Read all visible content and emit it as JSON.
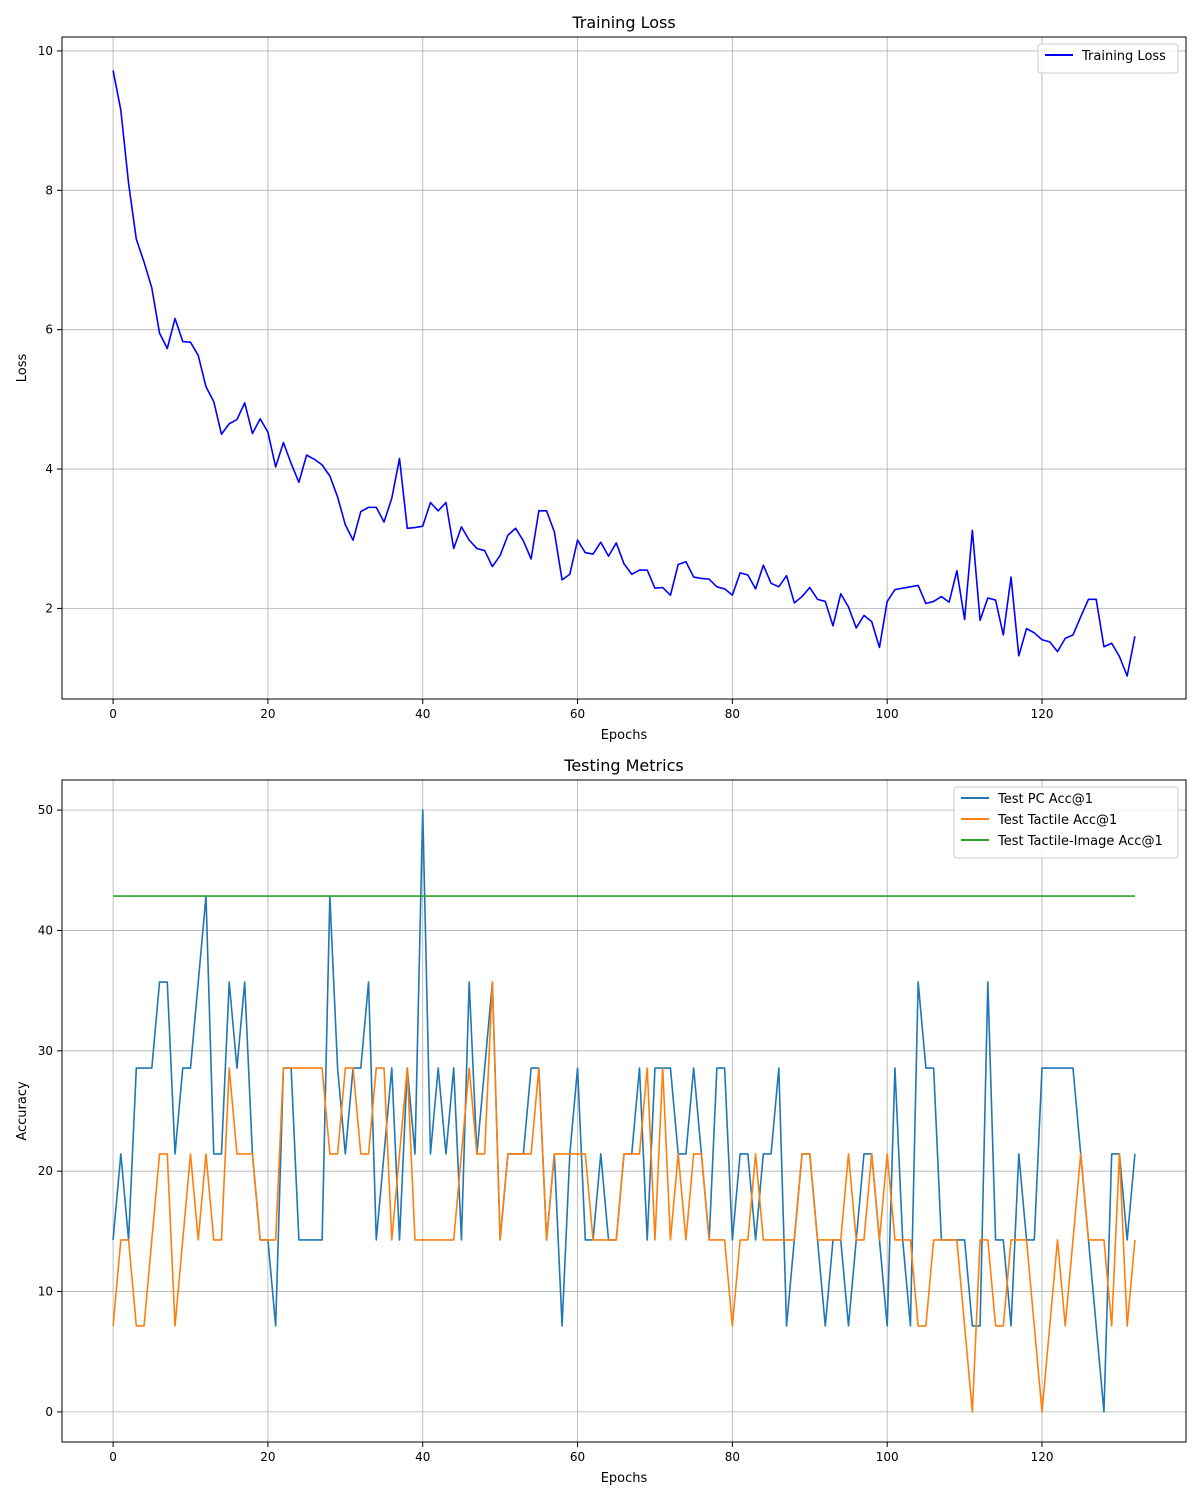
{
  "chart_data": [
    {
      "type": "line",
      "title": "Training Loss",
      "xlabel": "Epochs",
      "ylabel": "Loss",
      "xlim": [
        -6.6,
        138.6
      ],
      "ylim": [
        0.7,
        10.2
      ],
      "xticks": [
        0,
        20,
        40,
        60,
        80,
        100,
        120
      ],
      "yticks": [
        2,
        4,
        6,
        8,
        10
      ],
      "grid": true,
      "legend_position": "upper-right",
      "series": [
        {
          "name": "Training Loss",
          "color": "#0000ff",
          "x_start": 0,
          "values": [
            9.72,
            9.15,
            8.1,
            7.3,
            6.97,
            6.6,
            5.95,
            5.73,
            6.16,
            5.83,
            5.82,
            5.63,
            5.18,
            4.97,
            4.5,
            4.65,
            4.71,
            4.95,
            4.51,
            4.72,
            4.53,
            4.03,
            4.38,
            4.08,
            3.81,
            4.2,
            4.14,
            4.06,
            3.9,
            3.6,
            3.2,
            2.98,
            3.39,
            3.45,
            3.45,
            3.24,
            3.58,
            4.15,
            3.15,
            3.16,
            3.18,
            3.52,
            3.4,
            3.52,
            2.86,
            3.17,
            2.98,
            2.86,
            2.83,
            2.6,
            2.76,
            3.05,
            3.15,
            2.97,
            2.71,
            3.4,
            3.4,
            3.1,
            2.41,
            2.49,
            2.98,
            2.8,
            2.78,
            2.95,
            2.75,
            2.94,
            2.64,
            2.49,
            2.55,
            2.55,
            2.29,
            2.3,
            2.19,
            2.63,
            2.67,
            2.45,
            2.43,
            2.42,
            2.31,
            2.28,
            2.19,
            2.51,
            2.48,
            2.28,
            2.62,
            2.36,
            2.31,
            2.47,
            2.08,
            2.17,
            2.3,
            2.13,
            2.1,
            1.75,
            2.21,
            2.02,
            1.72,
            1.9,
            1.81,
            1.44,
            2.1,
            2.27,
            2.29,
            2.31,
            2.33,
            2.07,
            2.1,
            2.17,
            2.09,
            2.54,
            1.84,
            3.12,
            1.83,
            2.15,
            2.12,
            1.62,
            2.45,
            1.32,
            1.71,
            1.65,
            1.55,
            1.52,
            1.38,
            1.57,
            1.62,
            1.88,
            2.13,
            2.13,
            1.45,
            1.5,
            1.31,
            1.03,
            1.6
          ]
        }
      ]
    },
    {
      "type": "line",
      "title": "Testing Metrics",
      "xlabel": "Epochs",
      "ylabel": "Accuracy",
      "xlim": [
        -6.6,
        138.6
      ],
      "ylim": [
        -2.5,
        52.5
      ],
      "xticks": [
        0,
        20,
        40,
        60,
        80,
        100,
        120
      ],
      "yticks": [
        0,
        10,
        20,
        30,
        40,
        50
      ],
      "grid": true,
      "legend_position": "upper-right",
      "series": [
        {
          "name": "Test PC Acc@1",
          "color": "#1f77b4",
          "x_start": 0,
          "values": [
            14.29,
            21.43,
            14.29,
            28.57,
            28.57,
            28.57,
            35.71,
            35.71,
            21.43,
            28.57,
            28.57,
            35.71,
            42.86,
            21.43,
            21.43,
            35.71,
            28.57,
            35.71,
            21.43,
            14.29,
            14.29,
            7.14,
            28.57,
            28.57,
            14.29,
            14.29,
            14.29,
            14.29,
            42.86,
            28.57,
            21.43,
            28.57,
            28.57,
            35.71,
            14.29,
            21.43,
            28.57,
            14.29,
            28.57,
            21.43,
            50.0,
            21.43,
            28.57,
            21.43,
            28.57,
            14.29,
            35.71,
            21.43,
            28.57,
            35.71,
            14.29,
            21.43,
            21.43,
            21.43,
            28.57,
            28.57,
            14.29,
            21.43,
            7.14,
            21.43,
            28.57,
            14.29,
            14.29,
            21.43,
            14.29,
            14.29,
            21.43,
            21.43,
            28.57,
            14.29,
            28.57,
            28.57,
            28.57,
            21.43,
            21.43,
            28.57,
            21.43,
            14.29,
            28.57,
            28.57,
            14.29,
            21.43,
            21.43,
            14.29,
            21.43,
            21.43,
            28.57,
            7.14,
            14.29,
            21.43,
            21.43,
            14.29,
            7.14,
            14.29,
            14.29,
            7.14,
            14.29,
            21.43,
            21.43,
            14.29,
            7.14,
            28.57,
            14.29,
            7.14,
            35.71,
            28.57,
            28.57,
            14.29,
            14.29,
            14.29,
            14.29,
            7.14,
            7.14,
            35.71,
            14.29,
            14.29,
            7.14,
            21.43,
            14.29,
            14.29,
            28.57,
            28.57,
            28.57,
            28.57,
            28.57,
            21.43,
            14.29,
            7.14,
            0.0,
            21.43,
            21.43,
            14.29,
            21.43
          ]
        },
        {
          "name": "Test Tactile Acc@1",
          "color": "#ff7f0e",
          "x_start": 0,
          "values": [
            7.14,
            14.29,
            14.29,
            7.14,
            7.14,
            14.29,
            21.43,
            21.43,
            7.14,
            14.29,
            21.43,
            14.29,
            21.43,
            14.29,
            14.29,
            28.57,
            21.43,
            21.43,
            21.43,
            14.29,
            14.29,
            14.29,
            28.57,
            28.57,
            28.57,
            28.57,
            28.57,
            28.57,
            21.43,
            21.43,
            28.57,
            28.57,
            21.43,
            21.43,
            28.57,
            28.57,
            14.29,
            21.43,
            28.57,
            14.29,
            14.29,
            14.29,
            14.29,
            14.29,
            14.29,
            21.43,
            28.57,
            21.43,
            21.43,
            35.71,
            14.29,
            21.43,
            21.43,
            21.43,
            21.43,
            28.57,
            14.29,
            21.43,
            21.43,
            21.43,
            21.43,
            21.43,
            14.29,
            14.29,
            14.29,
            14.29,
            21.43,
            21.43,
            21.43,
            28.57,
            14.29,
            28.57,
            14.29,
            21.43,
            14.29,
            21.43,
            21.43,
            14.29,
            14.29,
            14.29,
            7.14,
            14.29,
            14.29,
            21.43,
            14.29,
            14.29,
            14.29,
            14.29,
            14.29,
            21.43,
            21.43,
            14.29,
            14.29,
            14.29,
            14.29,
            21.43,
            14.29,
            14.29,
            21.43,
            14.29,
            21.43,
            14.29,
            14.29,
            14.29,
            7.14,
            7.14,
            14.29,
            14.29,
            14.29,
            14.29,
            7.14,
            0.0,
            14.29,
            14.29,
            7.14,
            7.14,
            14.29,
            14.29,
            14.29,
            7.14,
            0.0,
            7.14,
            14.29,
            7.14,
            14.29,
            21.43,
            14.29,
            14.29,
            14.29,
            7.14,
            21.43,
            7.14,
            14.29
          ]
        },
        {
          "name": "Test Tactile-Image Acc@1",
          "color": "#2ca02c",
          "x_start": 0,
          "values": [
            42.86,
            42.86,
            42.86,
            42.86,
            42.86,
            42.86,
            42.86,
            42.86,
            42.86,
            42.86,
            42.86,
            42.86,
            42.86,
            42.86,
            42.86,
            42.86,
            42.86,
            42.86,
            42.86,
            42.86,
            42.86,
            42.86,
            42.86,
            42.86,
            42.86,
            42.86,
            42.86,
            42.86,
            42.86,
            42.86,
            42.86,
            42.86,
            42.86,
            42.86,
            42.86,
            42.86,
            42.86,
            42.86,
            42.86,
            42.86,
            42.86,
            42.86,
            42.86,
            42.86,
            42.86,
            42.86,
            42.86,
            42.86,
            42.86,
            42.86,
            42.86,
            42.86,
            42.86,
            42.86,
            42.86,
            42.86,
            42.86,
            42.86,
            42.86,
            42.86,
            42.86,
            42.86,
            42.86,
            42.86,
            42.86,
            42.86,
            42.86,
            42.86,
            42.86,
            42.86,
            42.86,
            42.86,
            42.86,
            42.86,
            42.86,
            42.86,
            42.86,
            42.86,
            42.86,
            42.86,
            42.86,
            42.86,
            42.86,
            42.86,
            42.86,
            42.86,
            42.86,
            42.86,
            42.86,
            42.86,
            42.86,
            42.86,
            42.86,
            42.86,
            42.86,
            42.86,
            42.86,
            42.86,
            42.86,
            42.86,
            42.86,
            42.86,
            42.86,
            42.86,
            42.86,
            42.86,
            42.86,
            42.86,
            42.86,
            42.86,
            42.86,
            42.86,
            42.86,
            42.86,
            42.86,
            42.86,
            42.86,
            42.86,
            42.86,
            42.86,
            42.86,
            42.86,
            42.86,
            42.86,
            42.86,
            42.86,
            42.86,
            42.86,
            42.86,
            42.86,
            42.86,
            42.86,
            42.86
          ]
        }
      ]
    }
  ]
}
